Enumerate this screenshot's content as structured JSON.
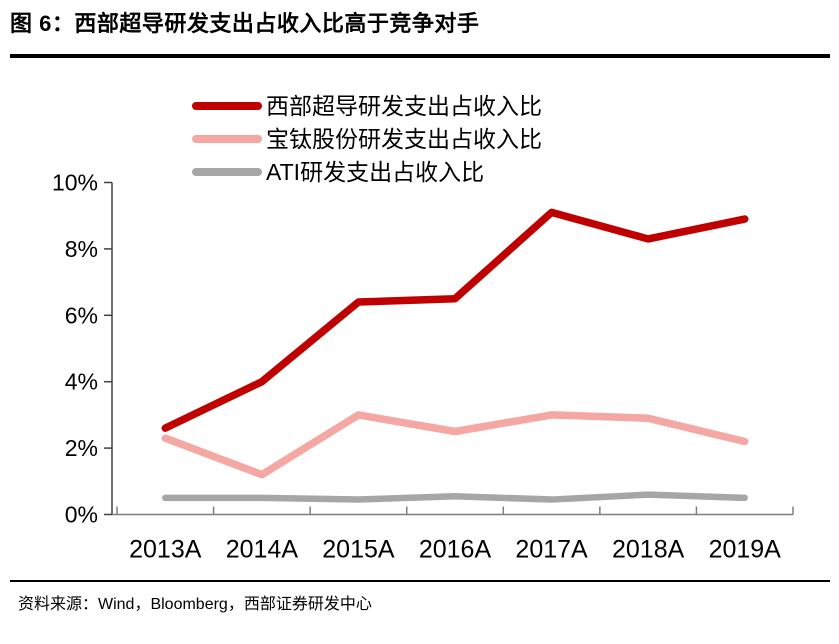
{
  "header": {
    "title": "图 6：西部超导研发支出占收入比高于竞争对手"
  },
  "footer": {
    "source": "资料来源：Wind，Bloomberg，西部证券研发中心"
  },
  "chart_data": {
    "type": "line",
    "title": "西部超导研发支出占收入比高于竞争对手",
    "categories": [
      "2013A",
      "2014A",
      "2015A",
      "2016A",
      "2017A",
      "2018A",
      "2019A"
    ],
    "series": [
      {
        "name": "西部超导研发支出占收入比",
        "color": "#c00000",
        "stroke_width": 7.5,
        "values": [
          2.6,
          4.0,
          6.4,
          6.5,
          9.1,
          8.3,
          8.9
        ]
      },
      {
        "name": "宝钛股份研发支出占收入比",
        "color": "#f4a7a3",
        "stroke_width": 7.5,
        "values": [
          2.3,
          1.2,
          3.0,
          2.5,
          3.0,
          2.9,
          2.2
        ]
      },
      {
        "name": "ATI研发支出占收入比",
        "color": "#a6a6a6",
        "stroke_width": 6.5,
        "values": [
          0.5,
          0.5,
          0.45,
          0.55,
          0.45,
          0.6,
          0.5
        ]
      }
    ],
    "xlabel": "",
    "ylabel": "",
    "ylim": [
      0,
      10
    ],
    "ytick_step": 2,
    "ytick_labels": [
      "0%",
      "2%",
      "4%",
      "6%",
      "8%",
      "10%"
    ],
    "legend_position": "top",
    "grid": false,
    "colors": {
      "y_axis": "#404040",
      "x_axis": "#7f7f7f",
      "tick": "#7f7f7f",
      "text": "#000000"
    }
  }
}
